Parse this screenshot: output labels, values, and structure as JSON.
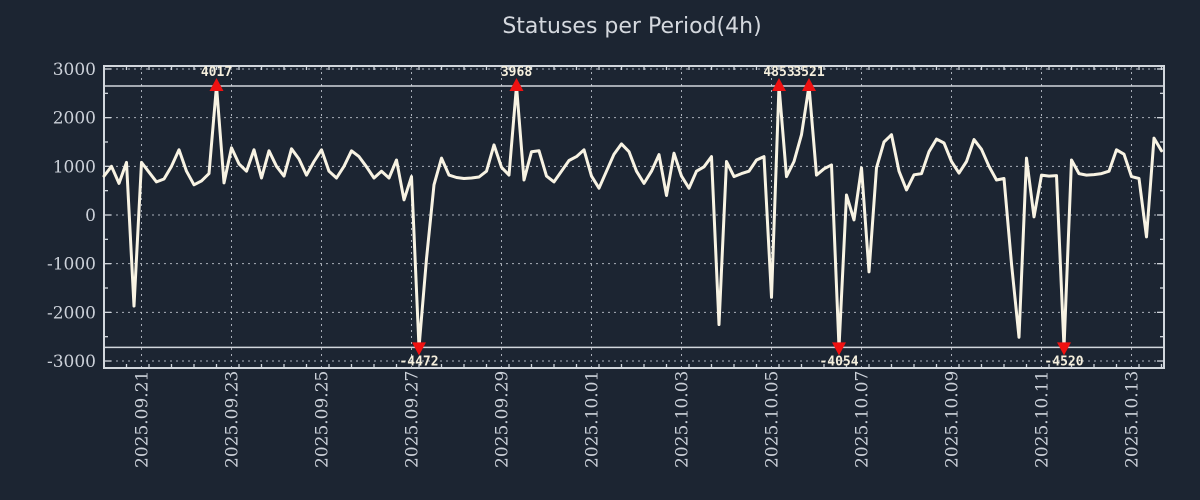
{
  "title": "Statuses per Period(4h)",
  "colors": {
    "background": "#1c2532",
    "series_line": "#f8f3e3",
    "marker_red": "#ee1111",
    "grid": "#b9bfc8",
    "axis": "#d2d7dd",
    "tick_text": "#ccd1d9",
    "title_text": "#d4d8de",
    "marker_label_text": "#f5efdd"
  },
  "chart_data": {
    "type": "line",
    "title": "Statuses per Period(4h)",
    "xlabel": "",
    "ylabel": "",
    "ylim": [
      -3000,
      3000
    ],
    "grid": true,
    "legend_position": "none",
    "period_hours": 4,
    "start_time": "2025-09-20 04:00",
    "clip_lines": [
      2650,
      -2720
    ],
    "y_ticks": [
      {
        "value": 3000,
        "label": "3000"
      },
      {
        "value": 2000,
        "label": "2000"
      },
      {
        "value": 1000,
        "label": "1000"
      },
      {
        "value": 0,
        "label": "0"
      },
      {
        "value": -1000,
        "label": "-1000"
      },
      {
        "value": -2000,
        "label": "-2000"
      },
      {
        "value": -3000,
        "label": "-3000"
      }
    ],
    "x_ticks": [
      {
        "index": 5,
        "label": "2025.09.21"
      },
      {
        "index": 17,
        "label": "2025.09.23"
      },
      {
        "index": 29,
        "label": "2025.09.25"
      },
      {
        "index": 41,
        "label": "2025.09.27"
      },
      {
        "index": 53,
        "label": "2025.09.29"
      },
      {
        "index": 65,
        "label": "2025.10.01"
      },
      {
        "index": 77,
        "label": "2025.10.03"
      },
      {
        "index": 89,
        "label": "2025.10.05"
      },
      {
        "index": 101,
        "label": "2025.10.07"
      },
      {
        "index": 113,
        "label": "2025.10.09"
      },
      {
        "index": 125,
        "label": "2025.10.11"
      },
      {
        "index": 137,
        "label": "2025.10.13"
      }
    ],
    "values": [
      800,
      1000,
      650,
      1080,
      -1870,
      1080,
      880,
      680,
      740,
      1000,
      1340,
      900,
      620,
      700,
      850,
      4017,
      660,
      1380,
      1050,
      900,
      1340,
      760,
      1320,
      1000,
      800,
      1360,
      1150,
      820,
      1100,
      1340,
      900,
      760,
      1000,
      1320,
      1200,
      990,
      760,
      900,
      760,
      1130,
      310,
      790,
      -4472,
      -900,
      620,
      1170,
      820,
      770,
      750,
      760,
      780,
      900,
      1440,
      980,
      820,
      3968,
      720,
      1300,
      1320,
      800,
      680,
      900,
      1120,
      1200,
      1340,
      800,
      550,
      900,
      1250,
      1460,
      1300,
      900,
      650,
      900,
      1240,
      400,
      1270,
      800,
      550,
      900,
      990,
      1200,
      -2250,
      1100,
      790,
      850,
      900,
      1130,
      1200,
      -1690,
      4853,
      790,
      1100,
      1650,
      3521,
      820,
      950,
      1030,
      -4054,
      410,
      -100,
      970,
      -1170,
      970,
      1500,
      1650,
      900,
      515,
      825,
      850,
      1300,
      1560,
      1480,
      1100,
      860,
      1100,
      1550,
      1350,
      1000,
      720,
      750,
      -1000,
      -2510,
      1170,
      -40,
      820,
      800,
      810,
      -4520,
      1130,
      850,
      820,
      830,
      850,
      900,
      1340,
      1250,
      790,
      750,
      -450,
      1580,
      1320
    ],
    "annotations": [
      {
        "index": 15,
        "value": 4017,
        "label": "4017",
        "dir": "up"
      },
      {
        "index": 42,
        "value": -4472,
        "label": "-4472",
        "dir": "down"
      },
      {
        "index": 55,
        "value": 3968,
        "label": "3968",
        "dir": "up"
      },
      {
        "index": 90,
        "value": 4853,
        "label": "4853",
        "dir": "up"
      },
      {
        "index": 94,
        "value": 3521,
        "label": "3521",
        "dir": "up"
      },
      {
        "index": 98,
        "value": -4054,
        "label": "-4054",
        "dir": "down"
      },
      {
        "index": 128,
        "value": -4520,
        "label": "-4520",
        "dir": "down"
      }
    ]
  }
}
